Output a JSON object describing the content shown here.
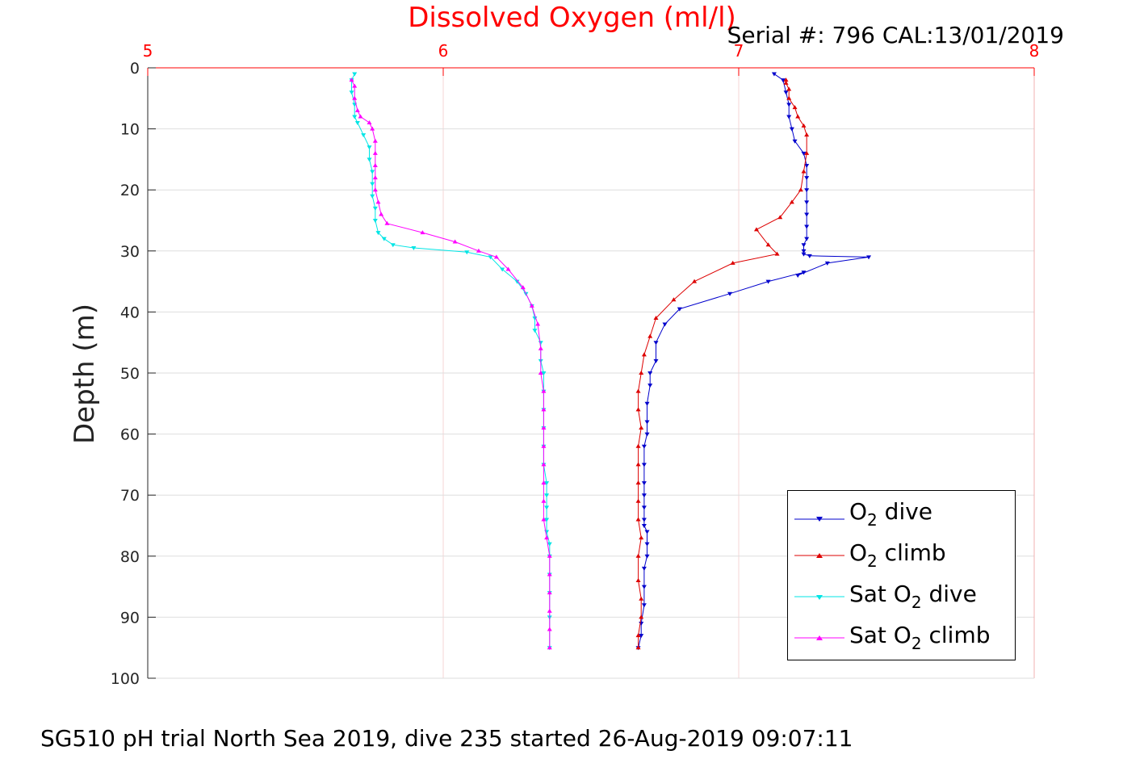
{
  "title": "Dissolved Oxygen (ml/l)",
  "serial": "Serial #: 796  CAL:13/01/2019",
  "caption": "SG510 pH trial North Sea 2019, dive 235 started 26-Aug-2019 09:07:11",
  "legend": [
    {
      "pre": "O",
      "sub": "2",
      "post": " dive"
    },
    {
      "pre": "O",
      "sub": "2",
      "post": " climb"
    },
    {
      "pre": "Sat O",
      "sub": "2",
      "post": " dive"
    },
    {
      "pre": "Sat O",
      "sub": "2",
      "post": " climb"
    }
  ],
  "chart_data": {
    "type": "line",
    "title": "Dissolved Oxygen (ml/l)",
    "xlabel": "",
    "ylabel": "Depth (m)",
    "xlim": [
      5,
      8
    ],
    "ylim": [
      0,
      100
    ],
    "y_reversed": true,
    "x_axis_position": "top",
    "x_ticks": [
      5,
      6,
      7,
      8
    ],
    "y_ticks": [
      0,
      10,
      20,
      30,
      40,
      50,
      60,
      70,
      80,
      90,
      100
    ],
    "grid": true,
    "legend_position": "bottom-right",
    "colors": {
      "x_axis": "#ff0000",
      "title": "#ff0000"
    },
    "series": [
      {
        "name": "O2 dive",
        "color": "#0000cc",
        "marker": "triangle-down",
        "x": [
          7.12,
          7.15,
          7.16,
          7.17,
          7.17,
          7.18,
          7.19,
          7.22,
          7.23,
          7.23,
          7.23,
          7.23,
          7.23,
          7.23,
          7.23,
          7.22,
          7.22,
          7.22,
          7.24,
          7.44,
          7.3,
          7.2,
          7.22,
          7.1,
          6.97,
          6.8,
          6.75,
          6.72,
          6.72,
          6.7,
          6.7,
          6.69,
          6.69,
          6.69,
          6.68,
          6.68,
          6.68,
          6.68,
          6.68,
          6.68,
          6.68,
          6.69,
          6.69,
          6.69,
          6.68,
          6.68,
          6.68,
          6.67,
          6.67,
          6.66
        ],
        "y": [
          1,
          2,
          4,
          6,
          8,
          10,
          12,
          14,
          16,
          18,
          20,
          22,
          24,
          26,
          28,
          29,
          30,
          30.5,
          30.8,
          31,
          32,
          34,
          33.5,
          35,
          37,
          39.5,
          42,
          45,
          48,
          50,
          52,
          55,
          58,
          60,
          62,
          65,
          68,
          70,
          72,
          74,
          75,
          76,
          78,
          80,
          82,
          85,
          88,
          91,
          93,
          95
        ]
      },
      {
        "name": "O2 climb",
        "color": "#dd0000",
        "marker": "triangle-up",
        "x": [
          6.66,
          6.66,
          6.67,
          6.67,
          6.66,
          6.66,
          6.67,
          6.66,
          6.66,
          6.66,
          6.66,
          6.66,
          6.67,
          6.66,
          6.66,
          6.67,
          6.68,
          6.7,
          6.72,
          6.78,
          6.85,
          6.98,
          7.13,
          7.1,
          7.06,
          7.14,
          7.18,
          7.21,
          7.22,
          7.23,
          7.23,
          7.22,
          7.2,
          7.19,
          7.17,
          7.17,
          7.16,
          7.16
        ],
        "y": [
          95,
          93,
          90,
          87,
          84,
          80,
          77,
          74,
          71,
          68,
          65,
          62,
          59,
          56,
          53,
          50,
          47,
          44,
          41,
          38,
          35,
          32,
          30.5,
          29,
          26.5,
          24.5,
          22,
          20,
          17,
          14,
          11,
          9.5,
          8,
          6.5,
          5,
          3.5,
          2.5,
          2
        ]
      },
      {
        "name": "Sat O2 dive",
        "color": "#00e5e5",
        "marker": "triangle-down",
        "x": [
          5.7,
          5.69,
          5.69,
          5.7,
          5.7,
          5.71,
          5.73,
          5.75,
          5.75,
          5.76,
          5.76,
          5.76,
          5.77,
          5.77,
          5.78,
          5.8,
          5.83,
          5.9,
          6.08,
          6.16,
          6.2,
          6.25,
          6.28,
          6.3,
          6.31,
          6.31,
          6.33,
          6.33,
          6.34,
          6.34,
          6.34,
          6.34,
          6.34,
          6.34,
          6.35,
          6.35,
          6.35,
          6.35,
          6.35,
          6.36,
          6.36,
          6.36,
          6.36,
          6.36,
          6.36
        ],
        "y": [
          1,
          2,
          4,
          6,
          8,
          9,
          11,
          13,
          15,
          17,
          19,
          21,
          23,
          25,
          27,
          28,
          29,
          29.5,
          30.2,
          31,
          33,
          35,
          37,
          39,
          41,
          43,
          45,
          48,
          50,
          53,
          56,
          59,
          62,
          65,
          68,
          70,
          72,
          74,
          76,
          78,
          80,
          83,
          86,
          90,
          95
        ]
      },
      {
        "name": "Sat O2 climb",
        "color": "#ff00ff",
        "marker": "triangle-up",
        "x": [
          6.36,
          6.36,
          6.36,
          6.36,
          6.36,
          6.36,
          6.35,
          6.34,
          6.34,
          6.34,
          6.34,
          6.34,
          6.34,
          6.34,
          6.34,
          6.33,
          6.33,
          6.32,
          6.3,
          6.27,
          6.22,
          6.18,
          6.12,
          6.04,
          5.93,
          5.81,
          5.79,
          5.78,
          5.77,
          5.77,
          5.77,
          5.77,
          5.77,
          5.76,
          5.75,
          5.72,
          5.71,
          5.7,
          5.7,
          5.69
        ],
        "y": [
          95,
          92,
          89,
          86,
          83,
          80,
          77,
          74,
          71,
          68,
          65,
          62,
          59,
          56,
          53,
          50,
          46,
          42,
          39,
          36,
          33,
          31,
          30,
          28.5,
          27,
          25.5,
          24,
          22,
          20,
          18,
          16,
          14,
          12,
          10,
          9,
          8,
          7,
          5,
          3,
          2
        ]
      }
    ]
  }
}
